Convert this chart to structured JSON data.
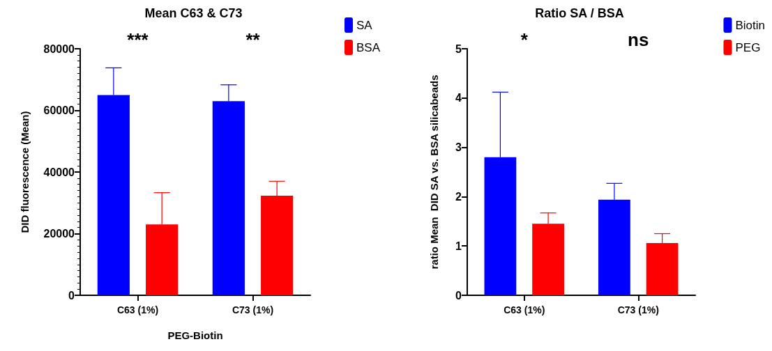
{
  "chart_data": [
    {
      "type": "bar",
      "title": "Mean C63 & C73",
      "xlabel": "PEG-Biotin",
      "ylabel": "DID fluorescence (Mean)",
      "categories": [
        "C63 (1%)",
        "C73 (1%)"
      ],
      "series": [
        {
          "name": "SA",
          "color": "#0000ff",
          "values": [
            65000,
            63000
          ],
          "errors": [
            [
              65000,
              73800
            ],
            [
              63000,
              68300
            ]
          ]
        },
        {
          "name": "BSA",
          "color": "#ff0000",
          "values": [
            23000,
            32300
          ],
          "errors": [
            [
              23000,
              33300
            ],
            [
              32300,
              37000
            ]
          ]
        }
      ],
      "ylim": [
        0,
        80000
      ],
      "yticks": [
        0,
        20000,
        40000,
        60000,
        80000
      ],
      "grid": false,
      "legend": "top right",
      "annotations": [
        "***",
        "**"
      ]
    },
    {
      "type": "bar",
      "title": "Ratio SA / BSA",
      "ylabel": "ratio Mean  DID SA vs. BSA silicabeads",
      "categories": [
        "C63 (1%)",
        "C73 (1%)"
      ],
      "series": [
        {
          "name": "Biotin",
          "color": "#0000ff",
          "values": [
            2.8,
            1.94
          ],
          "errors": [
            [
              2.8,
              4.12
            ],
            [
              1.94,
              2.27
            ]
          ]
        },
        {
          "name": "PEG",
          "color": "#ff0000",
          "values": [
            1.45,
            1.06
          ],
          "errors": [
            [
              1.45,
              1.67
            ],
            [
              1.06,
              1.25
            ]
          ]
        }
      ],
      "ylim": [
        0,
        5
      ],
      "yticks": [
        0,
        1,
        2,
        3,
        4,
        5
      ],
      "grid": false,
      "legend": "top right",
      "annotations": [
        "*",
        "ns"
      ]
    }
  ]
}
